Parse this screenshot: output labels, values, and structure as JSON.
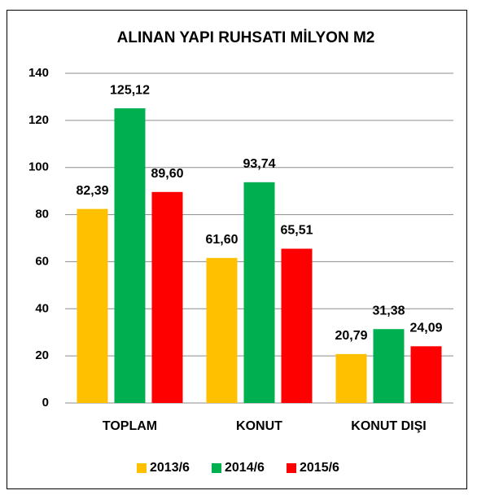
{
  "chart_data": {
    "type": "bar",
    "title": "ALINAN YAPI RUHSATI MİLYON M2",
    "categories": [
      "TOPLAM",
      "KONUT",
      "KONUT DIŞI"
    ],
    "series": [
      {
        "name": "2013/6",
        "color": "#ffc000",
        "values": [
          82.39,
          61.6,
          20.79
        ],
        "value_labels": [
          "82,39",
          "61,60",
          "20,79"
        ]
      },
      {
        "name": "2014/6",
        "color": "#00b050",
        "values": [
          125.12,
          93.74,
          31.38
        ],
        "value_labels": [
          "125,12",
          "93,74",
          "31,38"
        ]
      },
      {
        "name": "2015/6",
        "color": "#ff0000",
        "values": [
          89.6,
          65.51,
          24.09
        ],
        "value_labels": [
          "89,60",
          "65,51",
          "24,09"
        ]
      }
    ],
    "ylim": [
      0,
      140
    ],
    "yticks": [
      0,
      20,
      40,
      60,
      80,
      100,
      120,
      140
    ],
    "grid": true,
    "legend": "bottom"
  }
}
